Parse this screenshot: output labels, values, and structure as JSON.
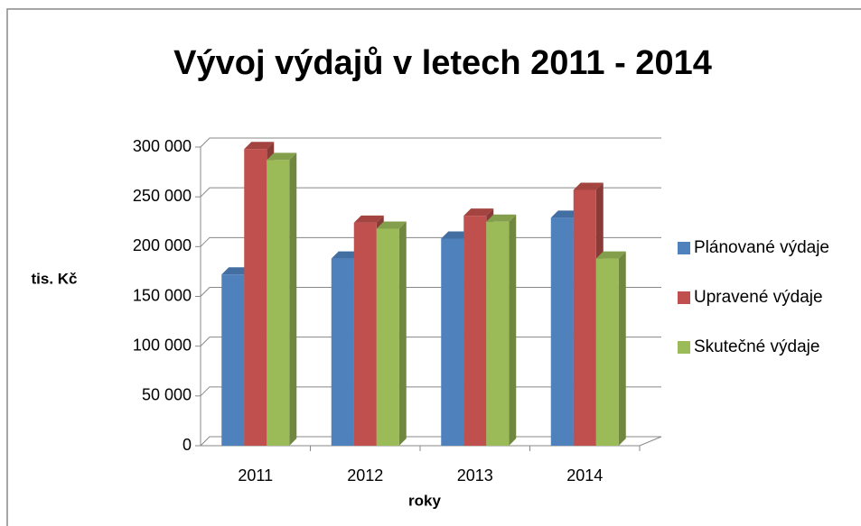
{
  "chart_data": {
    "type": "bar",
    "title": "Vývoj výdajů v letech 2011 - 2014",
    "xlabel": "roky",
    "ylabel": "tis. Kč",
    "categories": [
      "2011",
      "2012",
      "2013",
      "2014"
    ],
    "series": [
      {
        "name": "Plánované výdaje",
        "color": "#4f81bd",
        "values": [
          172000,
          188000,
          208000,
          229000
        ]
      },
      {
        "name": "Upravené výdaje",
        "color": "#c0504d",
        "values": [
          298000,
          224000,
          231000,
          257000
        ]
      },
      {
        "name": "Skutečné výdaje",
        "color": "#9bbb59",
        "values": [
          287000,
          218000,
          225000,
          188000
        ]
      }
    ],
    "ylim": [
      0,
      300000
    ],
    "yticks": [
      0,
      {
        "value": 50000,
        "label": "50 000"
      },
      {
        "value": 100000,
        "label": "100 000"
      },
      {
        "value": 150000,
        "label": "150 000"
      },
      {
        "value": 200000,
        "label": "200 000"
      },
      {
        "value": 250000,
        "label": "250 000"
      },
      {
        "value": 300000,
        "label": "300 000"
      }
    ],
    "grid": true,
    "legend": "right"
  }
}
